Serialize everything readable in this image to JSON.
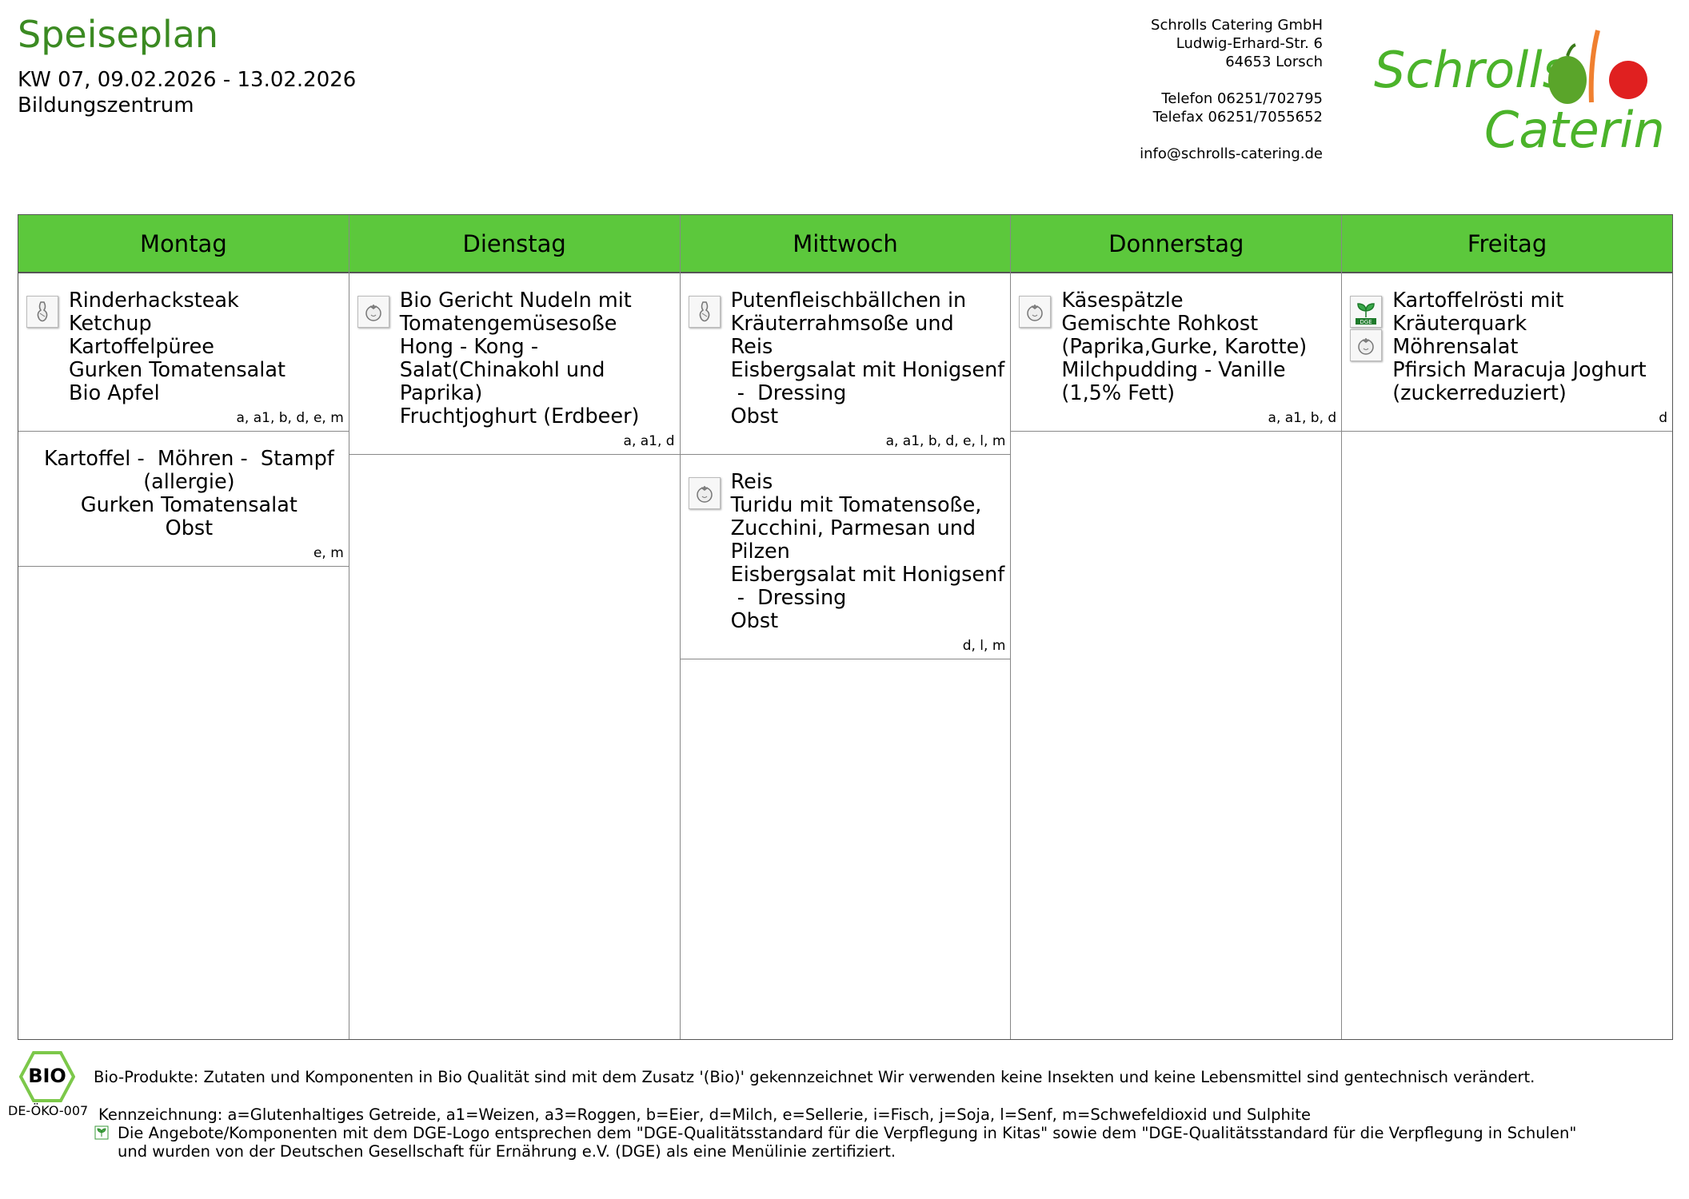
{
  "header": {
    "title": "Speiseplan",
    "week": "KW 07, 09.02.2026 - 13.02.2026",
    "location": "Bildungszentrum"
  },
  "company": {
    "name": "Schrolls Catering GmbH",
    "street": "Ludwig-Erhard-Str. 6",
    "city": "64653 Lorsch",
    "phone": "Telefon 06251/702795",
    "fax": "Telefax 06251/7055652",
    "email": "info@schrolls-catering.de",
    "logo_text": "Schrolls Catering"
  },
  "colors": {
    "header_green": "#5cc83c",
    "title_green": "#3b8a22"
  },
  "days": [
    {
      "name": "Montag",
      "meals": [
        {
          "icons": [
            "meat-icon"
          ],
          "lines": [
            "Rinderhacksteak",
            "Ketchup",
            "Kartoffelpüree",
            "Gurken Tomatensalat",
            "Bio Apfel"
          ],
          "allergens": "a, a1, b, d, e, m"
        },
        {
          "icons": [],
          "centered": true,
          "lines": [
            "Kartoffel -  Möhren -  Stampf",
            "(allergie)",
            "Gurken Tomatensalat",
            "Obst"
          ],
          "allergens": "e, m"
        }
      ]
    },
    {
      "name": "Dienstag",
      "meals": [
        {
          "icons": [
            "vegetarian-icon"
          ],
          "lines": [
            "Bio Gericht Nudeln mit",
            "Tomatengemüsesoße",
            "Hong - Kong -",
            "Salat(Chinakohl und",
            "Paprika)",
            "Fruchtjoghurt (Erdbeer)"
          ],
          "allergens": "a, a1, d"
        }
      ]
    },
    {
      "name": "Mittwoch",
      "meals": [
        {
          "icons": [
            "meat-icon"
          ],
          "lines": [
            "Putenfleischbällchen in",
            "Kräuterrahmsoße und",
            "Reis",
            "Eisbergsalat mit Honigsenf",
            " -  Dressing",
            "Obst"
          ],
          "allergens": "a, a1, b, d, e, l, m"
        },
        {
          "icons": [
            "vegetarian-icon"
          ],
          "lines": [
            "Reis",
            "Turidu mit Tomatensoße,",
            "Zucchini, Parmesan und",
            "Pilzen",
            "Eisbergsalat mit Honigsenf",
            " -  Dressing",
            "Obst"
          ],
          "allergens": "d, l, m"
        }
      ]
    },
    {
      "name": "Donnerstag",
      "meals": [
        {
          "icons": [
            "vegetarian-icon"
          ],
          "lines": [
            "Käsespätzle",
            "Gemischte Rohkost",
            "(Paprika,Gurke, Karotte)",
            "Milchpudding - Vanille",
            "(1,5% Fett)"
          ],
          "allergens": "a, a1, b, d"
        }
      ]
    },
    {
      "name": "Freitag",
      "meals": [
        {
          "icons": [
            "dge-icon",
            "vegetarian-icon"
          ],
          "lines": [
            "Kartoffelrösti mit",
            "Kräuterquark",
            "Möhrensalat",
            "Pfirsich Maracuja Joghurt",
            "(zuckerreduziert)"
          ],
          "allergens": "d"
        }
      ]
    }
  ],
  "footer": {
    "bio_code": "DE-ÖKO-007",
    "bio_logo": "BIO",
    "bio_text": "Bio-Produkte: Zutaten und Komponenten in Bio Qualität sind mit dem Zusatz '(Bio)' gekennzeichnet Wir verwenden keine Insekten und keine Lebensmittel sind gentechnisch verändert.",
    "legend": "Kennzeichnung: a=Glutenhaltiges Getreide, a1=Weizen, a3=Roggen, b=Eier, d=Milch, e=Sellerie, i=Fisch, j=Soja, l=Senf, m=Schwefeldioxid und Sulphite",
    "dge_line1": "Die Angebote/Komponenten mit dem DGE-Logo entsprechen dem \"DGE-Qualitätsstandard für die Verpflegung in Kitas\" sowie dem \"DGE-Qualitätsstandard für die Verpflegung in Schulen\"",
    "dge_line2": "und wurden von der Deutschen Gesellschaft für Ernährung e.V. (DGE) als eine Menülinie zertifiziert."
  }
}
